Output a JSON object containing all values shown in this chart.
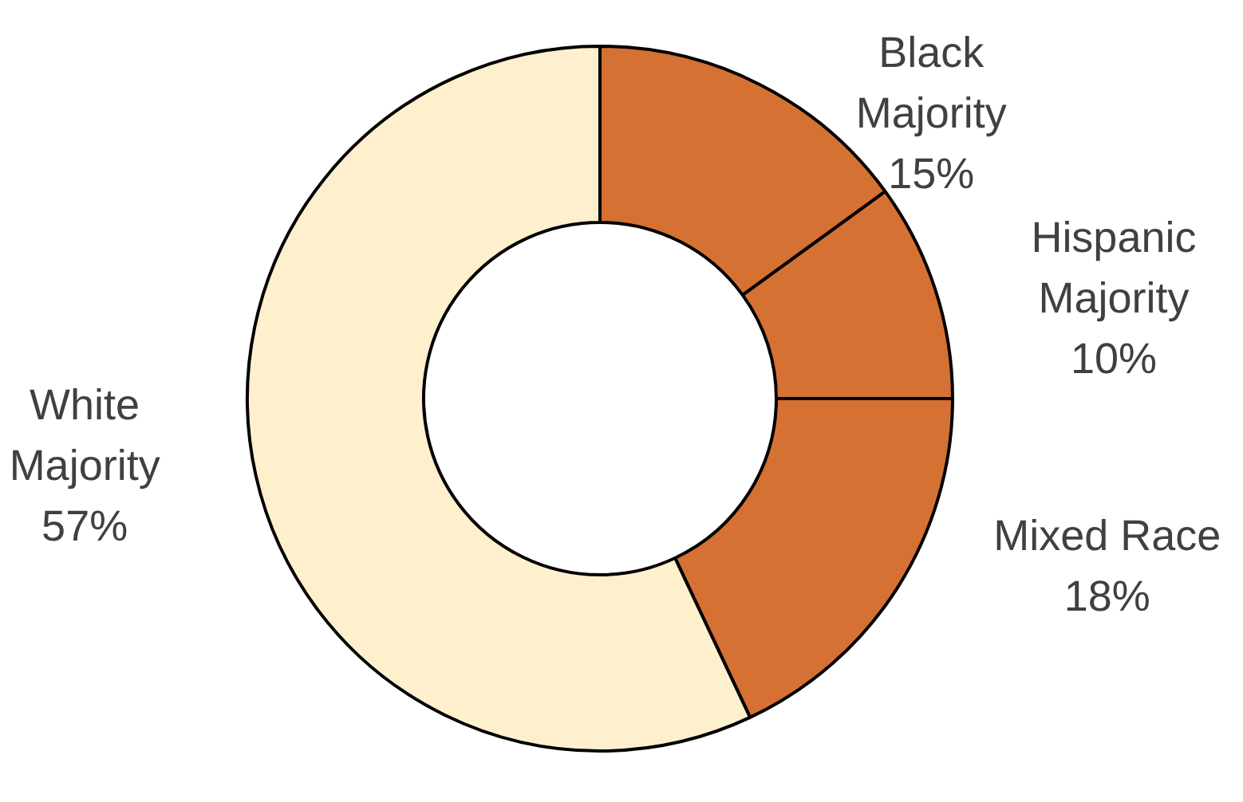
{
  "chart_data": {
    "type": "donut",
    "categories": [
      "Black Majority",
      "Hispanic Majority",
      "Mixed Race",
      "White Majority"
    ],
    "values": [
      15,
      10,
      18,
      57
    ],
    "colors": [
      "#d57133",
      "#d57133",
      "#d57133",
      "#fef0cd"
    ],
    "value_labels": [
      "15%",
      "10%",
      "18%",
      "57%"
    ],
    "legend": false
  }
}
